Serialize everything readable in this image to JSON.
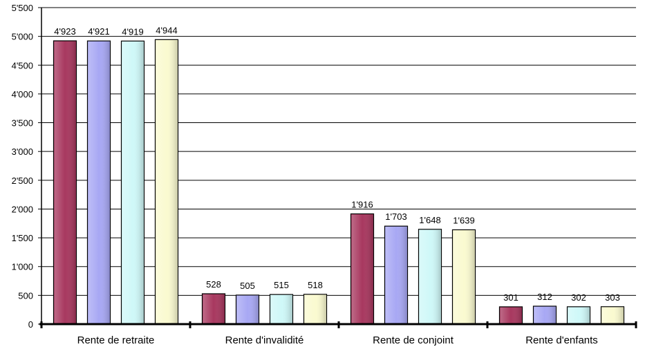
{
  "chart_data": {
    "type": "bar",
    "title": "",
    "xlabel": "",
    "ylabel": "",
    "categories": [
      "Rente de retraite",
      "Rente d'invalidité",
      "Rente de conjoint",
      "Rente d'enfants"
    ],
    "series": [
      {
        "color": "#a8385f",
        "values": [
          4923,
          528,
          1916,
          301
        ],
        "labels": [
          "4'923",
          "528",
          "1'916",
          "301"
        ]
      },
      {
        "color": "#a8a8f4",
        "values": [
          4921,
          505,
          1703,
          312
        ],
        "labels": [
          "4'921",
          "505",
          "1'703",
          "312"
        ]
      },
      {
        "color": "#cff8f8",
        "values": [
          4919,
          515,
          1648,
          302
        ],
        "labels": [
          "4'919",
          "515",
          "1'648",
          "302"
        ]
      },
      {
        "color": "#fafad0",
        "values": [
          4944,
          518,
          1639,
          303
        ],
        "labels": [
          "4'944",
          "518",
          "1'639",
          "303"
        ]
      }
    ],
    "ylim": [
      0,
      5500
    ],
    "yticks": [
      0,
      500,
      1000,
      1500,
      2000,
      2500,
      3000,
      3500,
      4000,
      4500,
      5000,
      5500
    ],
    "ytick_labels": [
      "0",
      "500",
      "1'000",
      "1'500",
      "2'000",
      "2'500",
      "3'000",
      "3'500",
      "4'000",
      "4'500",
      "5'000",
      "5'500"
    ],
    "grid": true,
    "legend": "none"
  }
}
